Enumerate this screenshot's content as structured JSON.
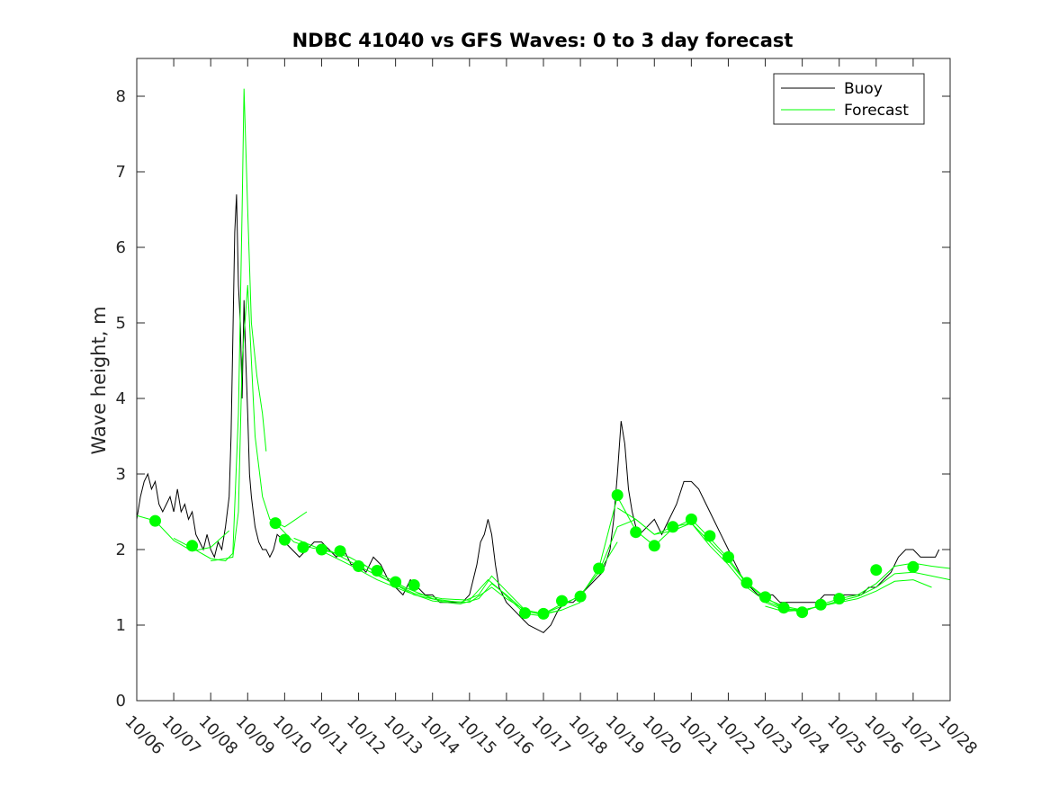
{
  "chart_data": {
    "type": "line",
    "title": "NDBC 41040 vs GFS Waves: 0 to 3 day forecast",
    "xlabel": "",
    "ylabel": "Wave height, m",
    "x_unit": "days from 10/06",
    "xlim": [
      0,
      22
    ],
    "ylim": [
      0,
      8.5
    ],
    "x_ticks": [
      {
        "x": 0,
        "label": "10/06"
      },
      {
        "x": 1,
        "label": "10/07"
      },
      {
        "x": 2,
        "label": "10/08"
      },
      {
        "x": 3,
        "label": "10/09"
      },
      {
        "x": 4,
        "label": "10/10"
      },
      {
        "x": 5,
        "label": "10/11"
      },
      {
        "x": 6,
        "label": "10/12"
      },
      {
        "x": 7,
        "label": "10/13"
      },
      {
        "x": 8,
        "label": "10/14"
      },
      {
        "x": 9,
        "label": "10/15"
      },
      {
        "x": 10,
        "label": "10/16"
      },
      {
        "x": 11,
        "label": "10/17"
      },
      {
        "x": 12,
        "label": "10/18"
      },
      {
        "x": 13,
        "label": "10/19"
      },
      {
        "x": 14,
        "label": "10/20"
      },
      {
        "x": 15,
        "label": "10/21"
      },
      {
        "x": 16,
        "label": "10/22"
      },
      {
        "x": 17,
        "label": "10/23"
      },
      {
        "x": 18,
        "label": "10/24"
      },
      {
        "x": 19,
        "label": "10/25"
      },
      {
        "x": 20,
        "label": "10/26"
      },
      {
        "x": 21,
        "label": "10/27"
      },
      {
        "x": 22,
        "label": "10/28"
      }
    ],
    "y_ticks": [
      {
        "y": 0,
        "label": "0"
      },
      {
        "y": 1,
        "label": "1"
      },
      {
        "y": 2,
        "label": "2"
      },
      {
        "y": 3,
        "label": "3"
      },
      {
        "y": 4,
        "label": "4"
      },
      {
        "y": 5,
        "label": "5"
      },
      {
        "y": 6,
        "label": "6"
      },
      {
        "y": 7,
        "label": "7"
      },
      {
        "y": 8,
        "label": "8"
      }
    ],
    "legend": {
      "placement": "top-right",
      "entries": [
        "Buoy",
        "Forecast"
      ]
    },
    "grid": false,
    "colors": {
      "buoy": "#000000",
      "forecast": "#00ff00"
    },
    "buoy": {
      "name": "Buoy",
      "x": [
        0,
        0.1,
        0.2,
        0.3,
        0.4,
        0.5,
        0.6,
        0.7,
        0.8,
        0.9,
        1.0,
        1.1,
        1.2,
        1.3,
        1.4,
        1.5,
        1.6,
        1.7,
        1.8,
        1.9,
        2.0,
        2.1,
        2.2,
        2.3,
        2.4,
        2.5,
        2.55,
        2.6,
        2.65,
        2.7,
        2.75,
        2.8,
        2.85,
        2.9,
        2.95,
        3.0,
        3.05,
        3.1,
        3.15,
        3.2,
        3.3,
        3.4,
        3.5,
        3.6,
        3.7,
        3.8,
        4.0,
        4.2,
        4.4,
        4.6,
        4.8,
        5.0,
        5.2,
        5.4,
        5.6,
        5.8,
        6.0,
        6.2,
        6.4,
        6.6,
        6.8,
        7.0,
        7.2,
        7.4,
        7.6,
        7.8,
        8.0,
        8.2,
        8.4,
        8.6,
        8.8,
        9.0,
        9.2,
        9.3,
        9.4,
        9.5,
        9.6,
        9.7,
        9.8,
        10.0,
        10.2,
        10.4,
        10.6,
        10.8,
        11.0,
        11.2,
        11.4,
        11.6,
        11.8,
        12.0,
        12.2,
        12.4,
        12.6,
        12.8,
        12.9,
        13.0,
        13.1,
        13.2,
        13.3,
        13.4,
        13.5,
        13.6,
        13.8,
        14.0,
        14.2,
        14.4,
        14.6,
        14.8,
        15.0,
        15.2,
        15.4,
        15.6,
        15.8,
        16.0,
        16.2,
        16.4,
        16.6,
        16.8,
        17.0,
        17.2,
        17.4,
        17.6,
        17.8,
        18.0,
        18.2,
        18.4,
        18.6,
        18.8,
        19.0,
        19.2,
        19.4,
        19.6,
        19.8,
        20.0,
        20.2,
        20.4,
        20.6,
        20.8,
        21.0,
        21.2,
        21.4,
        21.6,
        21.7
      ],
      "y": [
        2.4,
        2.7,
        2.9,
        3.0,
        2.8,
        2.9,
        2.6,
        2.5,
        2.6,
        2.7,
        2.5,
        2.8,
        2.5,
        2.6,
        2.4,
        2.5,
        2.2,
        2.1,
        2.0,
        2.2,
        2.0,
        1.9,
        2.1,
        2.0,
        2.3,
        2.7,
        3.5,
        4.8,
        6.2,
        6.7,
        5.5,
        5.0,
        4.0,
        5.3,
        4.5,
        3.8,
        3.0,
        2.7,
        2.5,
        2.3,
        2.1,
        2.0,
        2.0,
        1.9,
        2.0,
        2.2,
        2.1,
        2.0,
        1.9,
        2.0,
        2.1,
        2.1,
        2.0,
        1.9,
        2.0,
        1.8,
        1.8,
        1.7,
        1.9,
        1.8,
        1.6,
        1.5,
        1.4,
        1.6,
        1.5,
        1.4,
        1.4,
        1.3,
        1.3,
        1.3,
        1.3,
        1.4,
        1.8,
        2.1,
        2.2,
        2.4,
        2.2,
        1.8,
        1.5,
        1.3,
        1.2,
        1.1,
        1.0,
        0.95,
        0.9,
        1.0,
        1.2,
        1.3,
        1.3,
        1.4,
        1.5,
        1.6,
        1.7,
        2.0,
        2.4,
        3.0,
        3.7,
        3.4,
        2.8,
        2.5,
        2.3,
        2.2,
        2.3,
        2.4,
        2.2,
        2.4,
        2.6,
        2.9,
        2.9,
        2.8,
        2.6,
        2.4,
        2.2,
        2.0,
        1.8,
        1.6,
        1.5,
        1.4,
        1.4,
        1.4,
        1.3,
        1.3,
        1.3,
        1.3,
        1.3,
        1.3,
        1.4,
        1.4,
        1.4,
        1.4,
        1.4,
        1.4,
        1.5,
        1.5,
        1.6,
        1.7,
        1.9,
        2.0,
        2.0,
        1.9,
        1.9,
        1.9,
        2.0
      ]
    },
    "forecast_lines": [
      {
        "x": [
          0,
          0.5,
          1,
          1.5,
          2,
          2.5
        ],
        "y": [
          2.45,
          2.38,
          2.12,
          1.98,
          2.03,
          2.25
        ]
      },
      {
        "x": [
          1,
          1.5,
          2,
          2.4,
          2.6,
          2.75,
          2.85,
          2.9,
          3.0,
          3.1,
          3.25,
          3.4,
          3.5
        ],
        "y": [
          2.15,
          2.02,
          1.88,
          1.85,
          1.95,
          3.8,
          6.5,
          8.1,
          6.5,
          5.0,
          4.3,
          3.8,
          3.3
        ]
      },
      {
        "x": [
          2,
          2.4,
          2.6,
          2.75,
          2.85,
          3.0,
          3.2,
          3.4,
          3.6,
          3.8,
          4.0,
          4.3,
          4.6
        ],
        "y": [
          1.85,
          1.88,
          1.9,
          2.5,
          4.5,
          5.5,
          3.5,
          2.7,
          2.4,
          2.35,
          2.3,
          2.4,
          2.5
        ]
      },
      {
        "x": [
          3.75,
          4.25,
          4.75,
          5.25,
          6.0,
          6.75,
          7.5,
          8.25,
          9.0,
          9.5,
          9.75,
          10.5,
          11.0
        ],
        "y": [
          2.35,
          2.1,
          2.02,
          1.98,
          1.78,
          1.6,
          1.42,
          1.35,
          1.33,
          1.6,
          1.5,
          1.15,
          1.12
        ]
      },
      {
        "x": [
          4.25,
          5.0,
          5.75,
          6.5,
          7.25,
          8.0,
          8.75,
          9.25,
          9.6,
          10.0,
          10.5,
          11.0,
          11.5
        ],
        "y": [
          2.15,
          2.0,
          1.9,
          1.7,
          1.5,
          1.35,
          1.3,
          1.4,
          1.65,
          1.45,
          1.2,
          1.15,
          1.2
        ]
      },
      {
        "x": [
          5.0,
          5.75,
          6.5,
          7.25,
          8.0,
          8.75,
          9.25,
          9.6,
          10.0,
          10.5,
          11.0,
          11.5,
          12.0
        ],
        "y": [
          1.98,
          1.8,
          1.6,
          1.45,
          1.32,
          1.28,
          1.35,
          1.55,
          1.4,
          1.18,
          1.14,
          1.2,
          1.3
        ]
      },
      {
        "x": [
          6.0,
          6.75,
          7.5,
          8.25,
          9.0,
          9.6,
          10.0,
          10.5,
          11.0,
          11.5,
          12.0,
          12.5,
          13.0
        ],
        "y": [
          1.85,
          1.6,
          1.4,
          1.32,
          1.3,
          1.5,
          1.35,
          1.2,
          1.15,
          1.25,
          1.4,
          1.7,
          2.1
        ]
      },
      {
        "x": [
          11.0,
          11.5,
          12.0,
          12.5,
          13.0,
          13.5,
          14.0,
          14.5,
          15.0,
          15.5,
          16.0,
          16.5,
          17.0
        ],
        "y": [
          1.15,
          1.28,
          1.38,
          1.75,
          2.7,
          2.25,
          2.05,
          2.28,
          2.4,
          2.15,
          1.88,
          1.56,
          1.37
        ]
      },
      {
        "x": [
          12.0,
          12.5,
          13.0,
          13.5,
          14.0,
          14.5,
          15.0,
          15.5,
          16.0,
          16.5,
          17.0,
          17.5,
          18.0
        ],
        "y": [
          1.4,
          1.7,
          2.3,
          2.4,
          2.2,
          2.3,
          2.35,
          2.1,
          1.85,
          1.55,
          1.35,
          1.25,
          1.2
        ]
      },
      {
        "x": [
          13.0,
          13.5,
          14.0,
          14.5,
          15.0,
          15.5,
          16.0,
          16.5,
          17.0,
          17.5,
          18.0,
          18.5,
          19.0
        ],
        "y": [
          2.55,
          2.4,
          2.2,
          2.25,
          2.35,
          2.05,
          1.8,
          1.5,
          1.32,
          1.22,
          1.2,
          1.25,
          1.32
        ]
      },
      {
        "x": [
          17.0,
          17.5,
          18.0,
          18.5,
          19.0,
          19.5,
          20.0,
          20.5,
          21.0,
          21.5,
          22.0
        ],
        "y": [
          1.37,
          1.22,
          1.17,
          1.27,
          1.35,
          1.4,
          1.55,
          1.78,
          1.82,
          1.78,
          1.75
        ]
      },
      {
        "x": [
          17.0,
          17.5,
          18.0,
          18.5,
          19.0,
          19.5,
          20.0,
          20.5,
          21.0,
          21.5,
          22.0
        ],
        "y": [
          1.3,
          1.2,
          1.2,
          1.25,
          1.32,
          1.38,
          1.5,
          1.68,
          1.7,
          1.65,
          1.6
        ]
      },
      {
        "x": [
          17.0,
          17.5,
          18.0,
          18.5,
          19.0,
          19.5,
          20.0,
          20.5,
          21.0,
          21.5
        ],
        "y": [
          1.25,
          1.18,
          1.2,
          1.25,
          1.3,
          1.35,
          1.45,
          1.58,
          1.6,
          1.5
        ]
      }
    ],
    "forecast_points": {
      "x": [
        0.5,
        1.5,
        3.75,
        4.0,
        4.5,
        5.0,
        5.5,
        6.0,
        6.5,
        7.0,
        7.5,
        10.5,
        11.0,
        11.5,
        12.0,
        12.5,
        13.0,
        13.5,
        14.0,
        14.5,
        15.0,
        15.5,
        16.0,
        16.5,
        17.0,
        17.5,
        18.0,
        18.5,
        19.0,
        20.0,
        21.0
      ],
      "y": [
        2.38,
        2.05,
        2.35,
        2.13,
        2.03,
        2.0,
        1.98,
        1.78,
        1.72,
        1.57,
        1.53,
        1.16,
        1.15,
        1.32,
        1.38,
        1.75,
        2.72,
        2.23,
        2.05,
        2.3,
        2.4,
        2.18,
        1.9,
        1.56,
        1.37,
        1.23,
        1.17,
        1.27,
        1.35,
        1.73,
        1.77
      ]
    }
  }
}
